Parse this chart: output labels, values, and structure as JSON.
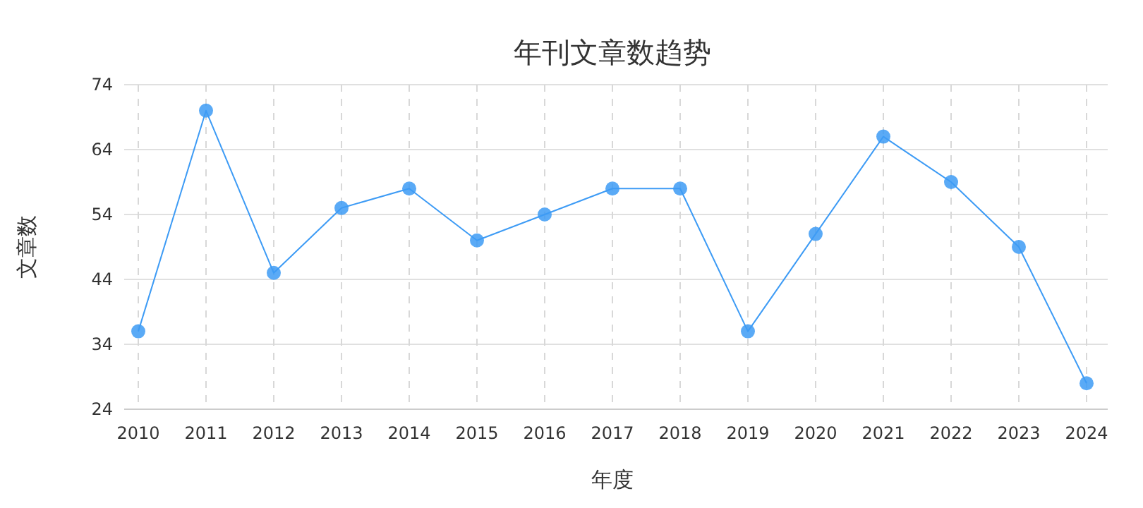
{
  "chart_data": {
    "type": "line",
    "title": "年刊文章数趋势",
    "xlabel": "年度",
    "ylabel": "文章数",
    "categories": [
      "2010",
      "2011",
      "2012",
      "2013",
      "2014",
      "2015",
      "2016",
      "2017",
      "2018",
      "2019",
      "2020",
      "2021",
      "2022",
      "2023",
      "2024"
    ],
    "values": [
      36,
      70,
      45,
      55,
      58,
      50,
      54,
      58,
      58,
      36,
      51,
      66,
      59,
      49,
      28
    ],
    "color": "#3d9bf5",
    "ylim": [
      24,
      74
    ],
    "yticks": [
      24,
      34,
      44,
      54,
      64,
      74
    ],
    "grid": true,
    "marker": "circle"
  }
}
